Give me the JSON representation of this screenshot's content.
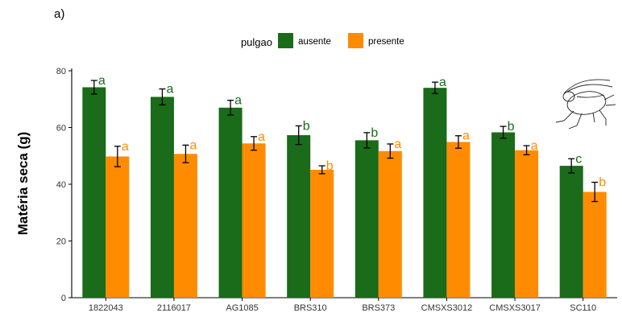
{
  "panel_tag": "a)",
  "chart_data": {
    "type": "bar",
    "title": "",
    "xlabel": "",
    "ylabel": "Matéria seca (g)",
    "ylim": [
      0,
      80
    ],
    "yticks": [
      0,
      20,
      40,
      60,
      80
    ],
    "legend": {
      "title": "pulgao",
      "position": "top"
    },
    "categories": [
      "1822043",
      "2116017",
      "AG1085",
      "BRS310",
      "BRS373",
      "CMSXS3012",
      "CMSXS3017",
      "SC110"
    ],
    "series": [
      {
        "name": "ausente",
        "color": "#1a6b1a",
        "values": [
          74.2,
          70.8,
          67.0,
          57.3,
          55.5,
          74.0,
          58.3,
          46.5
        ],
        "errors": [
          2.4,
          2.8,
          2.6,
          3.3,
          2.7,
          2.0,
          2.1,
          2.5
        ],
        "letters": [
          "a",
          "a",
          "a",
          "b",
          "b",
          "a",
          "b",
          "c"
        ]
      },
      {
        "name": "presente",
        "color": "#ff8c00",
        "values": [
          49.8,
          50.7,
          54.4,
          45.1,
          51.7,
          54.9,
          52.0,
          37.3
        ],
        "errors": [
          3.6,
          3.1,
          2.4,
          1.4,
          2.5,
          2.2,
          1.6,
          3.4
        ],
        "letters": [
          "a",
          "a",
          "a",
          "b",
          "a",
          "a",
          "a",
          "b"
        ]
      }
    ]
  },
  "decoration": {
    "icon": "aphid-icon"
  }
}
